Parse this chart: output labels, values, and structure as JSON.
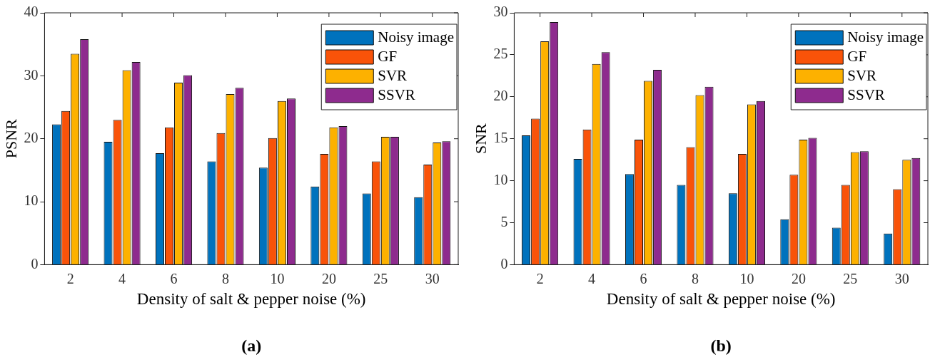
{
  "chart_data": [
    {
      "type": "bar",
      "ylabel": "PSNR",
      "xlabel": "Density of salt & pepper noise (%)",
      "annotations": [
        "(a)"
      ],
      "categories": [
        "2",
        "4",
        "6",
        "8",
        "10",
        "20",
        "25",
        "30"
      ],
      "ylim": [
        0,
        40
      ],
      "yticks": [
        0,
        10,
        20,
        30,
        40
      ],
      "grid": false,
      "legend": "top right",
      "series": [
        {
          "name": "Noisy image",
          "color": "#0072bd",
          "values": [
            22.3,
            19.5,
            17.7,
            16.4,
            15.4,
            12.4,
            11.3,
            10.7
          ]
        },
        {
          "name": "GF",
          "color": "#f95309",
          "values": [
            24.4,
            23.0,
            21.8,
            20.9,
            20.1,
            17.6,
            16.4,
            15.9
          ]
        },
        {
          "name": "SVR",
          "color": "#fdb100",
          "values": [
            33.5,
            30.9,
            28.9,
            27.1,
            26.0,
            21.8,
            20.3,
            19.4
          ]
        },
        {
          "name": "SSVR",
          "color": "#8e2b8e",
          "values": [
            35.8,
            32.2,
            30.1,
            28.1,
            26.4,
            22.0,
            20.3,
            19.6
          ]
        }
      ]
    },
    {
      "type": "bar",
      "ylabel": "SNR",
      "xlabel": "Density of salt & pepper noise (%)",
      "annotations": [
        "(b)"
      ],
      "categories": [
        "2",
        "4",
        "6",
        "8",
        "10",
        "20",
        "25",
        "30"
      ],
      "ylim": [
        0,
        30
      ],
      "yticks": [
        0,
        5,
        10,
        15,
        20,
        25,
        30
      ],
      "grid": false,
      "legend": "top right",
      "series": [
        {
          "name": "Noisy image",
          "color": "#0072bd",
          "values": [
            15.4,
            12.6,
            10.8,
            9.5,
            8.5,
            5.4,
            4.4,
            3.7
          ]
        },
        {
          "name": "GF",
          "color": "#f95309",
          "values": [
            17.4,
            16.1,
            14.9,
            14.0,
            13.2,
            10.7,
            9.5,
            9.0
          ]
        },
        {
          "name": "SVR",
          "color": "#fdb100",
          "values": [
            26.6,
            23.9,
            21.9,
            20.2,
            19.1,
            14.9,
            13.4,
            12.5
          ]
        },
        {
          "name": "SSVR",
          "color": "#8e2b8e",
          "values": [
            28.9,
            25.3,
            23.2,
            21.2,
            19.5,
            15.1,
            13.5,
            12.7
          ]
        }
      ]
    }
  ]
}
